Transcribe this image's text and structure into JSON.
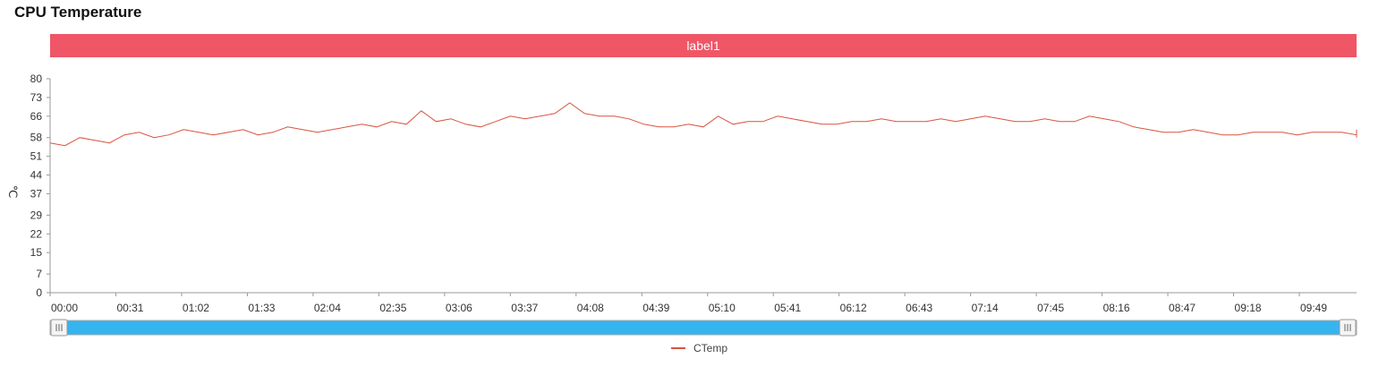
{
  "page": {
    "title": "CPU Temperature",
    "banner_label": "label1"
  },
  "colors": {
    "banner": "#ef5666",
    "series": "#d9533f",
    "slider": "#35b4ee"
  },
  "chart_data": {
    "type": "line",
    "xlabel": "",
    "ylabel": "℃",
    "ylim": [
      0,
      80
    ],
    "yticks": [
      "0",
      "7",
      "15",
      "22",
      "29",
      "37",
      "44",
      "51",
      "58",
      "66",
      "73",
      "80"
    ],
    "xticks": [
      "00:00",
      "00:31",
      "01:02",
      "01:33",
      "02:04",
      "02:35",
      "03:06",
      "03:37",
      "04:08",
      "04:39",
      "05:10",
      "05:41",
      "06:12",
      "06:43",
      "07:14",
      "07:45",
      "08:16",
      "08:47",
      "09:18",
      "09:49"
    ],
    "x_range_seconds": [
      0,
      616
    ],
    "grid": false,
    "legend": "bottom-center",
    "series": [
      {
        "name": "CTemp",
        "x_step_seconds": 7,
        "values": [
          56,
          55,
          58,
          57,
          56,
          59,
          60,
          58,
          59,
          61,
          60,
          59,
          60,
          61,
          59,
          60,
          62,
          61,
          60,
          61,
          62,
          63,
          62,
          64,
          63,
          68,
          64,
          65,
          63,
          62,
          64,
          66,
          65,
          66,
          67,
          71,
          67,
          66,
          66,
          65,
          63,
          62,
          62,
          63,
          62,
          66,
          63,
          64,
          64,
          66,
          65,
          64,
          63,
          63,
          64,
          64,
          65,
          64,
          64,
          64,
          65,
          64,
          65,
          66,
          65,
          64,
          64,
          65,
          64,
          64,
          66,
          65,
          64,
          62,
          61,
          60,
          60,
          61,
          60,
          59,
          59,
          60,
          60,
          60,
          59,
          60,
          60,
          60,
          59,
          60,
          60,
          60,
          61,
          60,
          60,
          60,
          60,
          61,
          60,
          60,
          61,
          60,
          61,
          60,
          60,
          60,
          60,
          61,
          60,
          60,
          60,
          59,
          60,
          59,
          59,
          60,
          59,
          59,
          60,
          59,
          59,
          60,
          59,
          59,
          59,
          59,
          58,
          59,
          59,
          60,
          59,
          59,
          60,
          59,
          59,
          60,
          58,
          59,
          59,
          59,
          59
        ]
      }
    ]
  },
  "slider": {
    "start": 0,
    "end": 100
  }
}
